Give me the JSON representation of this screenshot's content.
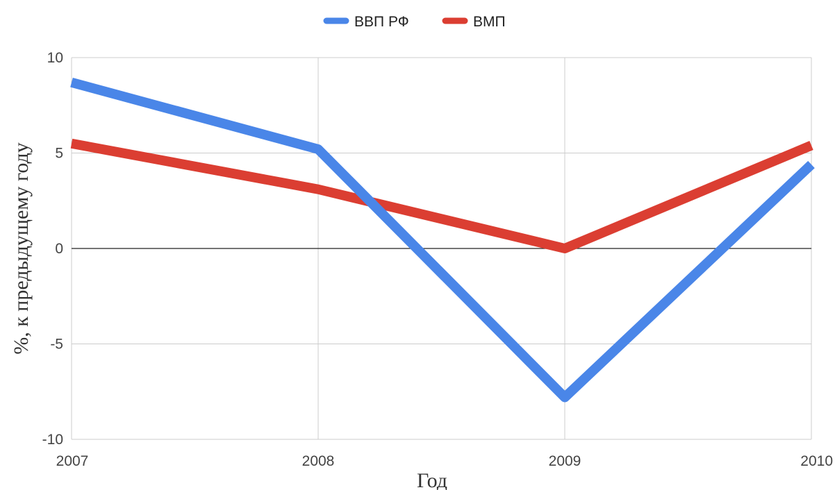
{
  "chart_data": {
    "type": "line",
    "title": "",
    "xlabel": "Год",
    "ylabel": "%, к предыдущему году",
    "x": [
      "2007",
      "2008",
      "2009",
      "2010"
    ],
    "ylim": [
      -10,
      10
    ],
    "yticks": [
      10,
      5,
      0,
      -5,
      -10
    ],
    "grid": true,
    "legend_position": "top",
    "series": [
      {
        "name": "ВВП РФ",
        "color": "#4a86e8",
        "values": [
          8.7,
          5.2,
          -7.8,
          4.4
        ]
      },
      {
        "name": "ВМП",
        "color": "#db3e32",
        "values": [
          5.5,
          3.1,
          0.0,
          5.4
        ]
      }
    ]
  }
}
